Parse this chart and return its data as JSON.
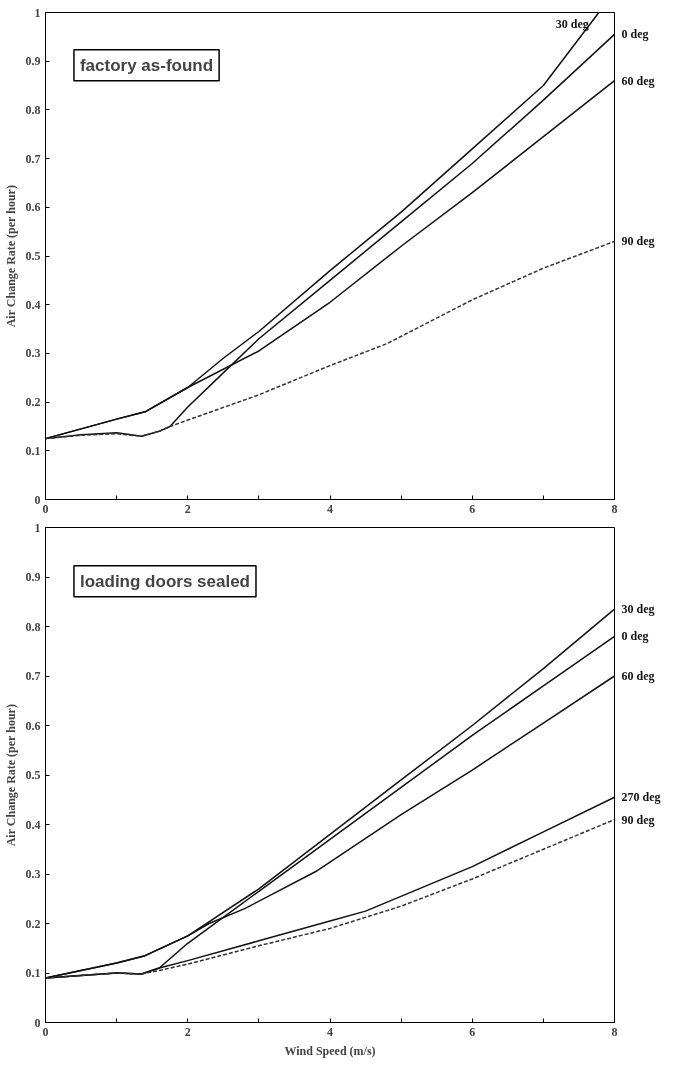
{
  "chart_data": [
    {
      "type": "line",
      "title": "factory as-found",
      "ylabel": "Air Change Rate (per hour)",
      "xlim": [
        0,
        8
      ],
      "ylim": [
        0,
        1
      ],
      "xticks": [
        0,
        {
          "value": 1,
          "label": null
        },
        2,
        {
          "value": 3,
          "label": null
        },
        4,
        {
          "value": 5,
          "label": null
        },
        6,
        {
          "value": 7,
          "label": null
        },
        8
      ],
      "yticks": [
        0,
        0.1,
        0.2,
        0.3,
        0.4,
        0.5,
        0.6,
        0.7,
        0.8,
        0.9,
        1
      ],
      "grid": false,
      "legend": false,
      "series": [
        {
          "name": "30 deg",
          "color": "#111111",
          "line_style": "solid",
          "x": [
            0,
            0.5,
            1,
            1.4,
            2,
            2.5,
            3,
            4,
            5,
            6,
            7,
            7.78
          ],
          "values": [
            0.125,
            0.145,
            0.165,
            0.18,
            0.23,
            0.29,
            0.345,
            0.47,
            0.59,
            0.72,
            0.85,
            1.0
          ]
        },
        {
          "name": "0 deg",
          "color": "#111111",
          "line_style": "solid",
          "x": [
            0,
            0.5,
            1,
            1.35,
            1.6,
            1.75,
            2,
            2.5,
            3,
            4,
            5,
            6,
            7,
            8
          ],
          "values": [
            0.125,
            0.133,
            0.137,
            0.13,
            0.14,
            0.15,
            0.19,
            0.26,
            0.33,
            0.45,
            0.57,
            0.69,
            0.82,
            0.955
          ]
        },
        {
          "name": "60 deg",
          "color": "#111111",
          "line_style": "solid",
          "x": [
            0,
            0.5,
            1,
            1.4,
            2,
            3,
            4,
            5,
            6,
            7,
            8
          ],
          "values": [
            0.125,
            0.145,
            0.165,
            0.18,
            0.23,
            0.305,
            0.405,
            0.52,
            0.63,
            0.745,
            0.86
          ]
        },
        {
          "name": "90 deg",
          "color": "#333333",
          "line_style": "dashed",
          "x": [
            0,
            0.5,
            1,
            1.35,
            1.6,
            1.75,
            3,
            4,
            4.8,
            6,
            7,
            8
          ],
          "values": [
            0.125,
            0.132,
            0.135,
            0.13,
            0.14,
            0.15,
            0.215,
            0.275,
            0.32,
            0.41,
            0.475,
            0.53
          ]
        }
      ]
    },
    {
      "type": "line",
      "title": "loading doors sealed",
      "xlabel": "Wind Speed (m/s)",
      "ylabel": "Air Change Rate (per hour)",
      "xlim": [
        0,
        8
      ],
      "ylim": [
        0,
        1
      ],
      "xticks": [
        0,
        {
          "value": 1,
          "label": null
        },
        2,
        {
          "value": 3,
          "label": null
        },
        4,
        {
          "value": 5,
          "label": null
        },
        6,
        {
          "value": 7,
          "label": null
        },
        8
      ],
      "yticks": [
        0,
        0.1,
        0.2,
        0.3,
        0.4,
        0.5,
        0.6,
        0.7,
        0.8,
        0.9,
        1
      ],
      "grid": false,
      "legend": false,
      "series": [
        {
          "name": "30 deg",
          "color": "#111111",
          "line_style": "solid",
          "x": [
            0,
            0.5,
            1,
            1.4,
            2,
            3,
            4,
            5,
            6,
            7,
            8
          ],
          "values": [
            0.09,
            0.105,
            0.12,
            0.135,
            0.175,
            0.27,
            0.38,
            0.49,
            0.6,
            0.715,
            0.835
          ]
        },
        {
          "name": "0 deg",
          "color": "#111111",
          "line_style": "solid",
          "x": [
            0,
            0.5,
            1,
            1.35,
            1.6,
            2,
            3,
            4,
            5,
            6,
            7,
            8
          ],
          "values": [
            0.09,
            0.095,
            0.1,
            0.098,
            0.11,
            0.16,
            0.265,
            0.37,
            0.475,
            0.58,
            0.68,
            0.78
          ]
        },
        {
          "name": "60 deg",
          "color": "#111111",
          "line_style": "solid",
          "x": [
            0,
            0.5,
            1,
            1.4,
            2,
            2.3,
            2.8,
            3.8,
            5,
            6,
            7,
            8
          ],
          "values": [
            0.09,
            0.105,
            0.12,
            0.135,
            0.175,
            0.2,
            0.23,
            0.305,
            0.42,
            0.51,
            0.605,
            0.7
          ]
        },
        {
          "name": "270 deg",
          "color": "#111111",
          "line_style": "solid",
          "x": [
            0,
            0.5,
            1,
            1.35,
            1.6,
            2,
            3,
            4,
            4.5,
            6,
            7,
            8
          ],
          "values": [
            0.09,
            0.095,
            0.1,
            0.098,
            0.11,
            0.125,
            0.165,
            0.205,
            0.225,
            0.315,
            0.385,
            0.455
          ]
        },
        {
          "name": "90 deg",
          "color": "#333333",
          "line_style": "dashed",
          "x": [
            0,
            0.5,
            1,
            1.35,
            1.6,
            2,
            3,
            4,
            5,
            6,
            7,
            8
          ],
          "values": [
            0.09,
            0.095,
            0.1,
            0.098,
            0.105,
            0.118,
            0.155,
            0.19,
            0.235,
            0.29,
            0.35,
            0.41
          ]
        }
      ]
    }
  ]
}
